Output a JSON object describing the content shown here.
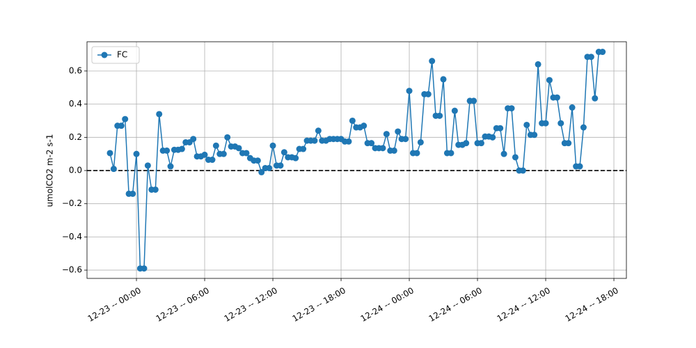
{
  "chart_data": {
    "type": "line",
    "y_label": "umolCO2 m-2 s-1",
    "x": [
      -2.33,
      -2,
      -1.67,
      -1.33,
      -1,
      -0.67,
      -0.33,
      0,
      0.33,
      0.67,
      1,
      1.33,
      1.67,
      2,
      2.33,
      2.67,
      3,
      3.33,
      3.67,
      4,
      4.33,
      4.67,
      5,
      5.33,
      5.67,
      6,
      6.33,
      6.67,
      7,
      7.33,
      7.67,
      8,
      8.33,
      8.67,
      9,
      9.33,
      9.67,
      10,
      10.33,
      10.67,
      11,
      11.33,
      11.67,
      12,
      12.33,
      12.67,
      13,
      13.33,
      13.67,
      14,
      14.33,
      14.67,
      15,
      15.33,
      15.67,
      16,
      16.33,
      16.67,
      17,
      17.33,
      17.67,
      18,
      18.33,
      18.67,
      19,
      19.33,
      19.67,
      20,
      20.33,
      20.67,
      21,
      21.33,
      21.67,
      22,
      22.33,
      22.67,
      23,
      23.33,
      23.67,
      24,
      24.33,
      24.67,
      25,
      25.33,
      25.67,
      26,
      26.33,
      26.67,
      27,
      27.33,
      27.67,
      28,
      28.33,
      28.67,
      29,
      29.33,
      29.67,
      30,
      30.33,
      30.67,
      31,
      31.33,
      31.67,
      32,
      32.33,
      32.67,
      33,
      33.33,
      33.67,
      34,
      34.33,
      34.67,
      35,
      35.33,
      35.67,
      36,
      36.33,
      36.67,
      37,
      37.33,
      37.67,
      38,
      38.33,
      38.67,
      39,
      39.33,
      39.67,
      40,
      40.33,
      40.67,
      41
    ],
    "series": [
      {
        "name": "FC",
        "color": "#1f77b4",
        "values": [
          0.105,
          0.01,
          0.27,
          0.27,
          0.31,
          -0.14,
          -0.14,
          0.1,
          -0.59,
          -0.59,
          0.03,
          -0.115,
          -0.115,
          0.34,
          0.12,
          0.12,
          0.025,
          0.125,
          0.125,
          0.13,
          0.17,
          0.17,
          0.19,
          0.085,
          0.085,
          0.095,
          0.065,
          0.065,
          0.15,
          0.1,
          0.1,
          0.2,
          0.145,
          0.145,
          0.135,
          0.105,
          0.105,
          0.075,
          0.06,
          0.06,
          -0.01,
          0.015,
          0.015,
          0.15,
          0.03,
          0.03,
          0.11,
          0.08,
          0.08,
          0.075,
          0.13,
          0.13,
          0.18,
          0.18,
          0.18,
          0.24,
          0.18,
          0.18,
          0.19,
          0.19,
          0.19,
          0.19,
          0.175,
          0.175,
          0.3,
          0.26,
          0.26,
          0.27,
          0.165,
          0.165,
          0.135,
          0.135,
          0.135,
          0.22,
          0.12,
          0.12,
          0.235,
          0.19,
          0.19,
          0.48,
          0.105,
          0.105,
          0.17,
          0.46,
          0.46,
          0.66,
          0.33,
          0.33,
          0.55,
          0.105,
          0.105,
          0.36,
          0.155,
          0.155,
          0.165,
          0.42,
          0.42,
          0.165,
          0.165,
          0.205,
          0.205,
          0.2,
          0.255,
          0.255,
          0.1,
          0.375,
          0.375,
          0.08,
          0.0,
          0.0,
          0.275,
          0.215,
          0.215,
          0.64,
          0.285,
          0.285,
          0.545,
          0.44,
          0.44,
          0.285,
          0.165,
          0.165,
          0.38,
          0.025,
          0.025,
          0.26,
          0.685,
          0.685,
          0.435,
          0.715,
          0.715
        ]
      }
    ],
    "xlim": [
      -4.35,
      43.1
    ],
    "xticks": [
      {
        "value": 0,
        "label": "12-23 -- 00:00"
      },
      {
        "value": 6,
        "label": "12-23 -- 06:00"
      },
      {
        "value": 12,
        "label": "12-23 -- 12:00"
      },
      {
        "value": 18,
        "label": "12-23 -- 18:00"
      },
      {
        "value": 24,
        "label": "12-24 -- 00:00"
      },
      {
        "value": 30,
        "label": "12-24 -- 06:00"
      },
      {
        "value": 36,
        "label": "12-24 -- 12:00"
      },
      {
        "value": 42,
        "label": "12-24 -- 18:00"
      }
    ],
    "ylim": [
      -0.65,
      0.776
    ],
    "yticks": [
      {
        "value": -0.6,
        "label": "−0.6"
      },
      {
        "value": -0.4,
        "label": "−0.4"
      },
      {
        "value": -0.2,
        "label": "−0.2"
      },
      {
        "value": 0,
        "label": "0.0"
      },
      0.2,
      0.4,
      0.6
    ],
    "grid": true,
    "legend": "upper left",
    "reference_line": {
      "y": 0,
      "color": "#000000"
    }
  }
}
